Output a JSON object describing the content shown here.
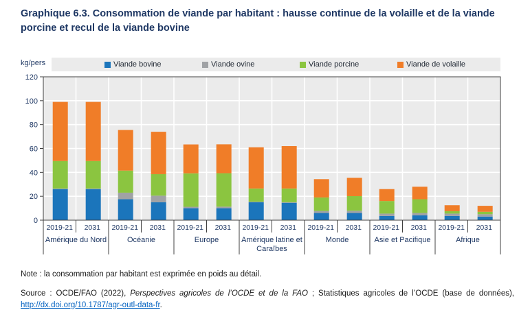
{
  "title": "Graphique 6.3. Consommation de viande par habitant : hausse continue de la volaille et de la viande porcine et recul de la viande bovine",
  "unit_label": "kg/pers",
  "colors": {
    "title": "#1f3864",
    "axis_text": "#1f3864",
    "plot_background": "#ebebeb",
    "gridline": "#ffffff",
    "axis_line": "#404040",
    "link": "#0563c1"
  },
  "chart_data": {
    "type": "bar",
    "stacked": true,
    "title": "Graphique 6.3. Consommation de viande par habitant : hausse continue de la volaille et de la viande porcine et recul de la viande bovine",
    "ylabel": "kg/pers",
    "ylim": [
      0,
      120
    ],
    "yticks": [
      0,
      20,
      40,
      60,
      80,
      100,
      120
    ],
    "grid": true,
    "legend_position": "top",
    "groups": [
      "Amérique du Nord",
      "Océanie",
      "Europe",
      "Amérique latine et Caraïbes",
      "Monde",
      "Asie et Pacifique",
      "Afrique"
    ],
    "periods": [
      "2019-21",
      "2031"
    ],
    "series": [
      {
        "name": "Viande bovine",
        "color": "#1b75bb",
        "values": [
          [
            26,
            26
          ],
          [
            17.5,
            15
          ],
          [
            10,
            10
          ],
          [
            15,
            14.5
          ],
          [
            6,
            6
          ],
          [
            3.5,
            4
          ],
          [
            3.5,
            3
          ]
        ]
      },
      {
        "name": "Viande ovine",
        "color": "#a0a2a5",
        "values": [
          [
            0.5,
            0.5
          ],
          [
            5.5,
            5.5
          ],
          [
            1.2,
            1.3
          ],
          [
            0.5,
            0.5
          ],
          [
            1.7,
            1.9
          ],
          [
            2,
            2
          ],
          [
            2,
            2
          ]
        ]
      },
      {
        "name": "Viande porcine",
        "color": "#8bc540",
        "values": [
          [
            23,
            23
          ],
          [
            18.5,
            18
          ],
          [
            28,
            28
          ],
          [
            11,
            11.5
          ],
          [
            11.3,
            12.2
          ],
          [
            10.5,
            11.5
          ],
          [
            2,
            2
          ]
        ]
      },
      {
        "name": "Viande de volaille",
        "color": "#f07d28",
        "values": [
          [
            49.5,
            49.5
          ],
          [
            34,
            35.5
          ],
          [
            24.2,
            24.2
          ],
          [
            34.5,
            35.5
          ],
          [
            15.3,
            15.4
          ],
          [
            10,
            10.5
          ],
          [
            5,
            5
          ]
        ]
      }
    ]
  },
  "note": "Note : la consommation par habitant est exprimée en poids au détail.",
  "source": {
    "prefix": "Source : OCDE/FAO (2022), ",
    "italic": "Perspectives agricoles de l’OCDE et de la FAO",
    "suffix": " ; Statistiques agricoles de l’OCDE (base de données), ",
    "link": "http://dx.doi.org/10.1787/agr-outl-data-fr",
    "after_link": "."
  }
}
